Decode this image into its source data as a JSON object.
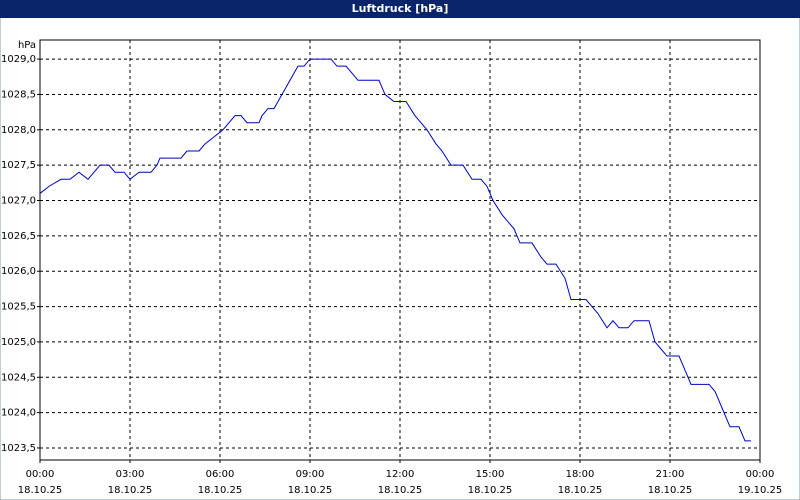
{
  "chart_data": {
    "type": "line",
    "title": "Luftdruck [hPa]",
    "y_unit": "hPa",
    "x": [
      0,
      0.3,
      0.7,
      1.0,
      1.3,
      1.6,
      1.8,
      2.0,
      2.3,
      2.5,
      2.8,
      3.0,
      3.3,
      3.7,
      3.9,
      4.0,
      4.7,
      4.9,
      5.3,
      5.5,
      5.8,
      6.1,
      6.3,
      6.5,
      6.7,
      6.9,
      7.3,
      7.4,
      7.6,
      7.8,
      8.2,
      8.6,
      8.8,
      9.0,
      9.7,
      9.9,
      10.2,
      10.4,
      10.6,
      11.3,
      11.5,
      11.8,
      12.2,
      12.5,
      12.9,
      13.2,
      13.4,
      13.7,
      14.1,
      14.4,
      14.7,
      14.9,
      15.1,
      15.4,
      15.8,
      16.0,
      16.4,
      16.7,
      16.9,
      17.2,
      17.5,
      17.7,
      18.2,
      18.4,
      18.6,
      18.9,
      19.1,
      19.3,
      19.6,
      19.8,
      20.3,
      20.5,
      20.7,
      20.9,
      21.3,
      21.5,
      21.7,
      22.3,
      22.5,
      22.8,
      23.0,
      23.3,
      23.5,
      23.7
    ],
    "series": [
      {
        "name": "Luftdruck",
        "color": "#0000c8",
        "values": [
          1027.1,
          1027.2,
          1027.3,
          1027.3,
          1027.4,
          1027.3,
          1027.4,
          1027.5,
          1027.5,
          1027.4,
          1027.4,
          1027.3,
          1027.4,
          1027.4,
          1027.5,
          1027.6,
          1027.6,
          1027.7,
          1027.7,
          1027.8,
          1027.9,
          1028.0,
          1028.1,
          1028.2,
          1028.2,
          1028.1,
          1028.1,
          1028.2,
          1028.3,
          1028.3,
          1028.6,
          1028.9,
          1028.9,
          1029.0,
          1029.0,
          1028.9,
          1028.9,
          1028.8,
          1028.7,
          1028.7,
          1028.5,
          1028.4,
          1028.4,
          1028.2,
          1028.0,
          1027.8,
          1027.7,
          1027.5,
          1027.5,
          1027.3,
          1027.3,
          1027.2,
          1027.0,
          1026.8,
          1026.6,
          1026.4,
          1026.4,
          1026.2,
          1026.1,
          1026.1,
          1025.9,
          1025.6,
          1025.6,
          1025.5,
          1025.4,
          1025.2,
          1025.3,
          1025.2,
          1025.2,
          1025.3,
          1025.3,
          1025.0,
          1024.9,
          1024.8,
          1024.8,
          1024.6,
          1024.4,
          1024.4,
          1024.3,
          1024.0,
          1023.8,
          1023.8,
          1023.6,
          1023.6
        ]
      }
    ],
    "xlim": [
      0,
      24
    ],
    "xticks": [
      {
        "value": 0,
        "label": "00:00"
      },
      {
        "value": 3,
        "label": "03:00"
      },
      {
        "value": 6,
        "label": "06:00"
      },
      {
        "value": 9,
        "label": "09:00"
      },
      {
        "value": 12,
        "label": "12:00"
      },
      {
        "value": 15,
        "label": "15:00"
      },
      {
        "value": 18,
        "label": "18:00"
      },
      {
        "value": 21,
        "label": "21:00"
      },
      {
        "value": 24,
        "label": "00:00"
      }
    ],
    "xtick_dates": [
      "18.10.25",
      "18.10.25",
      "18.10.25",
      "18.10.25",
      "18.10.25",
      "18.10.25",
      "18.10.25",
      "18.10.25",
      "19.10.25"
    ],
    "ylim": [
      1023.33,
      1029.27
    ],
    "yticks": [
      {
        "value": 1023.5,
        "label": "1023,5"
      },
      {
        "value": 1024.0,
        "label": "1024,0"
      },
      {
        "value": 1024.5,
        "label": "1024,5"
      },
      {
        "value": 1025.0,
        "label": "1025,0"
      },
      {
        "value": 1025.5,
        "label": "1025,5"
      },
      {
        "value": 1026.0,
        "label": "1026,0"
      },
      {
        "value": 1026.5,
        "label": "1026,5"
      },
      {
        "value": 1027.0,
        "label": "1027,0"
      },
      {
        "value": 1027.5,
        "label": "1027,5"
      },
      {
        "value": 1028.0,
        "label": "1028,0"
      },
      {
        "value": 1028.5,
        "label": "1028,5"
      },
      {
        "value": 1029.0,
        "label": "1029,0"
      }
    ],
    "grid": true
  }
}
